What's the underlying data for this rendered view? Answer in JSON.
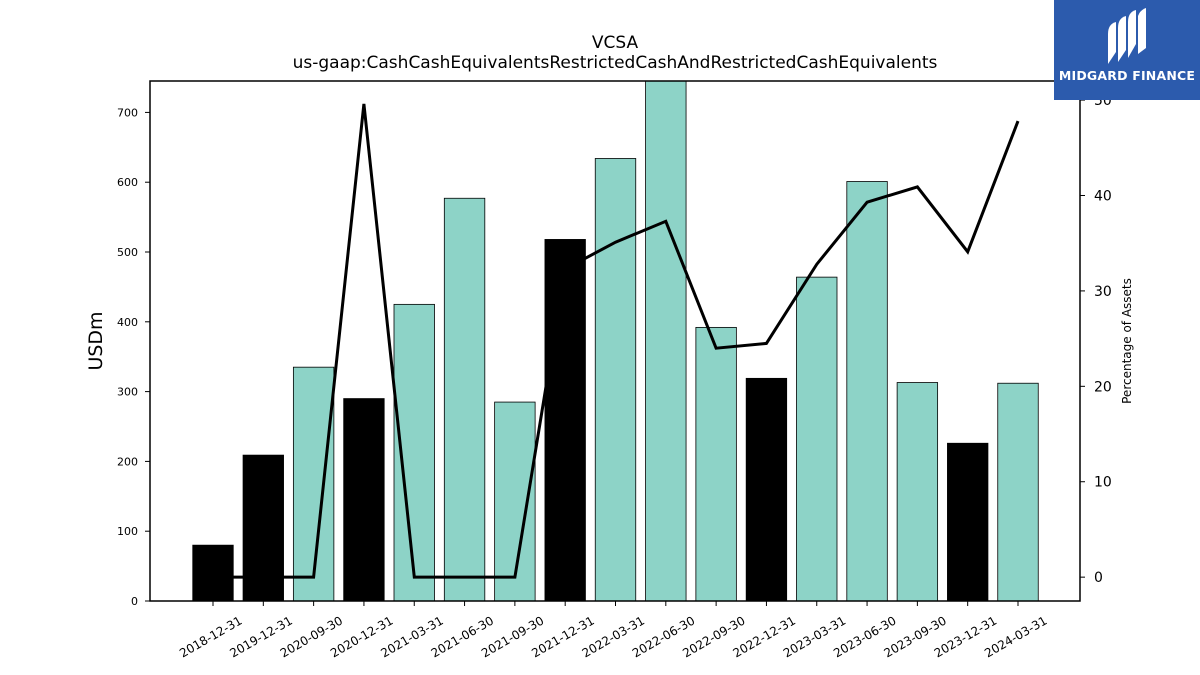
{
  "chart_data": {
    "type": "bar",
    "title": "VCSA",
    "subtitle": "us-gaap:CashCashEquivalentsRestrictedCashAndRestrictedCashEquivalents",
    "ylabel": "USDm",
    "y2label": "Percentage of Assets",
    "categories": [
      "2018-12-31",
      "2019-12-31",
      "2020-09-30",
      "2020-12-31",
      "2021-03-31",
      "2021-06-30",
      "2021-09-30",
      "2021-12-31",
      "2022-03-31",
      "2022-06-30",
      "2022-09-30",
      "2022-12-31",
      "2023-03-31",
      "2023-06-30",
      "2023-09-30",
      "2023-12-31",
      "2024-03-31"
    ],
    "series": [
      {
        "type": "bar",
        "values": [
          80,
          209,
          335,
          290,
          425,
          577,
          285,
          518,
          634,
          745,
          392,
          319,
          464,
          601,
          313,
          226,
          312
        ],
        "bar_colors": [
          "#000000",
          "#000000",
          "#8dd3c7",
          "#000000",
          "#8dd3c7",
          "#8dd3c7",
          "#8dd3c7",
          "#000000",
          "#8dd3c7",
          "#8dd3c7",
          "#8dd3c7",
          "#000000",
          "#8dd3c7",
          "#8dd3c7",
          "#8dd3c7",
          "#000000",
          "#8dd3c7"
        ]
      },
      {
        "type": "line",
        "axis": "right",
        "values": [
          0,
          0,
          0,
          49.6,
          0,
          0,
          0,
          32.3,
          35.1,
          37.3,
          24.0,
          24.5,
          32.8,
          39.3,
          40.9,
          34.1,
          47.8
        ],
        "color": "#000000"
      }
    ],
    "ylim": [
      0,
      745
    ],
    "y2lim": [
      -2.5,
      52
    ],
    "yticks": [
      0,
      100,
      200,
      300,
      400,
      500,
      600,
      700
    ],
    "y2ticks": [
      0,
      10,
      20,
      30,
      40,
      50
    ],
    "grid": false,
    "legend": "none"
  },
  "logo": {
    "text": "MIDGARD FINANCE",
    "background": "#2c5bad"
  }
}
